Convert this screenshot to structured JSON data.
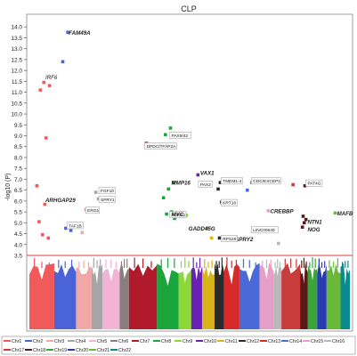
{
  "chart_data": {
    "type": "scatter",
    "title": "CLP",
    "ylabel": "-log10 (P)",
    "ylim": [
      3.5,
      14.5
    ],
    "yticks": [
      "4.0",
      "4.5",
      "5.0",
      "5.5",
      "6.0",
      "6.5",
      "7.0",
      "7.5",
      "8.0",
      "8.5",
      "9.0",
      "9.5",
      "10.0",
      "10.5",
      "11.0",
      "11.5",
      "12.0",
      "12.5",
      "13.0",
      "13.5",
      "14.0"
    ],
    "threshold": 3.5,
    "chromosomes": [
      {
        "name": "Chr1",
        "color": "#f05a5a"
      },
      {
        "name": "Chr2",
        "color": "#4a63d8"
      },
      {
        "name": "Chr3",
        "color": "#f2a7a7"
      },
      {
        "name": "Chr4",
        "color": "#a6a6a6"
      },
      {
        "name": "Chr5",
        "color": "#f3b3d4"
      },
      {
        "name": "Chr6",
        "color": "#8a7d7d"
      },
      {
        "name": "Chr7",
        "color": "#b01a2a"
      },
      {
        "name": "Chr8",
        "color": "#1aa63a"
      },
      {
        "name": "Chr9",
        "color": "#8cd838"
      },
      {
        "name": "Chr10",
        "color": "#6a1fb5"
      },
      {
        "name": "Chr11",
        "color": "#d6b41a"
      },
      {
        "name": "Chr12",
        "color": "#2a2a2a"
      },
      {
        "name": "Chr13",
        "color": "#d82a2a"
      },
      {
        "name": "Chr14",
        "color": "#4a6ad8"
      },
      {
        "name": "Chr15",
        "color": "#e6a0c8"
      },
      {
        "name": "Chr16",
        "color": "#b8b8b8"
      },
      {
        "name": "Chr17",
        "color": "#c83c3c"
      },
      {
        "name": "Chr18",
        "color": "#5a1a1a"
      },
      {
        "name": "Chr19",
        "color": "#3aa63a"
      },
      {
        "name": "Chr20",
        "color": "#2a3ab0"
      },
      {
        "name": "Chr21",
        "color": "#6ab83a"
      },
      {
        "name": "Chr22",
        "color": "#0a8a8a"
      }
    ],
    "points": [
      {
        "chr": "Chr1",
        "y": 5.85
      },
      {
        "chr": "Chr1",
        "y": 5.05
      },
      {
        "chr": "Chr1",
        "y": 4.3
      },
      {
        "chr": "Chr1",
        "y": 4.45
      },
      {
        "chr": "Chr1",
        "y": 6.7
      },
      {
        "chr": "Chr1",
        "y": 8.9
      },
      {
        "chr": "Chr1",
        "y": 11.1
      },
      {
        "chr": "Chr1",
        "y": 11.3
      },
      {
        "chr": "Chr1",
        "y": 11.45
      },
      {
        "chr": "Chr2",
        "y": 13.75
      },
      {
        "chr": "Chr2",
        "y": 12.4
      },
      {
        "chr": "Chr2",
        "y": 4.65
      },
      {
        "chr": "Chr2",
        "y": 4.75
      },
      {
        "chr": "Chr3",
        "y": 5.6
      },
      {
        "chr": "Chr3",
        "y": 4.55
      },
      {
        "chr": "Chr4",
        "y": 6.1
      },
      {
        "chr": "Chr4",
        "y": 6.4
      },
      {
        "chr": "Chr7",
        "y": 8.65
      },
      {
        "chr": "Chr8",
        "y": 9.35
      },
      {
        "chr": "Chr8",
        "y": 9.05
      },
      {
        "chr": "Chr8",
        "y": 6.85
      },
      {
        "chr": "Chr8",
        "y": 6.55
      },
      {
        "chr": "Chr8",
        "y": 6.15
      },
      {
        "chr": "Chr8",
        "y": 5.5
      },
      {
        "chr": "Chr8",
        "y": 5.4
      },
      {
        "chr": "Chr8",
        "y": 5.2
      },
      {
        "chr": "Chr9",
        "y": 5.35
      },
      {
        "chr": "Chr11",
        "y": 6.7
      },
      {
        "chr": "Chr11",
        "y": 4.75
      },
      {
        "chr": "Chr11",
        "y": 4.3
      },
      {
        "chr": "Chr10",
        "y": 7.2
      },
      {
        "chr": "Chr12",
        "y": 6.85
      },
      {
        "chr": "Chr12",
        "y": 6.55
      },
      {
        "chr": "Chr12",
        "y": 5.95
      },
      {
        "chr": "Chr12",
        "y": 4.3
      },
      {
        "chr": "Chr13",
        "y": 4.3
      },
      {
        "chr": "Chr14",
        "y": 6.85
      },
      {
        "chr": "Chr14",
        "y": 6.5
      },
      {
        "chr": "Chr14",
        "y": 4.7
      },
      {
        "chr": "Chr15",
        "y": 5.55
      },
      {
        "chr": "Chr16",
        "y": 4.05
      },
      {
        "chr": "Chr17",
        "y": 6.75
      },
      {
        "chr": "Chr18",
        "y": 6.7
      },
      {
        "chr": "Chr18",
        "y": 5.3
      },
      {
        "chr": "Chr18",
        "y": 5.15
      },
      {
        "chr": "Chr18",
        "y": 5.0
      },
      {
        "chr": "Chr18",
        "y": 4.8
      },
      {
        "chr": "Chr21",
        "y": 5.45
      }
    ],
    "annotations": [
      {
        "text": "FAM49A",
        "chr": "Chr2",
        "y": 13.75,
        "style": "bold"
      },
      {
        "text": "IRF6",
        "chr": "Chr1",
        "y": 11.7,
        "style": "plain"
      },
      {
        "text": "ARHGAP29",
        "chr": "Chr1",
        "y": 6.05,
        "style": "bold"
      },
      {
        "text": "TAF1B",
        "chr": "Chr2",
        "y": 4.9,
        "style": "boxed"
      },
      {
        "text": "SPRY1",
        "chr": "Chr4",
        "y": 6.1,
        "style": "boxed"
      },
      {
        "text": "ERG1",
        "chr": "Chr3",
        "y": 5.6,
        "style": "boxed"
      },
      {
        "text": "FGF10",
        "chr": "Chr4",
        "y": 6.5,
        "style": "boxed"
      },
      {
        "text": "DPDC/TFAP2A",
        "chr": "Chr7",
        "y": 8.55,
        "style": "boxed"
      },
      {
        "text": "PAX9/42",
        "chr": "Chr8",
        "y": 9.05,
        "style": "boxed"
      },
      {
        "text": "MAFB",
        "chr": "Chr21",
        "y": 5.45,
        "style": "bold"
      },
      {
        "text": "MMP16",
        "chr": "Chr8",
        "y": 6.85,
        "style": "bold"
      },
      {
        "text": "FOXE1",
        "chr": "Chr8",
        "y": 5.4,
        "style": "boxed"
      },
      {
        "text": "MYC",
        "chr": "Chr8",
        "y": 5.4,
        "style": "bold"
      },
      {
        "text": "GADD45G",
        "chr": "Chr9",
        "y": 4.75,
        "style": "bold"
      },
      {
        "text": "PAX2",
        "chr": "Chr10",
        "y": 6.8,
        "style": "boxed"
      },
      {
        "text": "VAX1",
        "chr": "Chr10",
        "y": 7.3,
        "style": "bold"
      },
      {
        "text": "TMEM1-4",
        "chr": "Chr12",
        "y": 6.95,
        "style": "boxed"
      },
      {
        "text": "KRT18",
        "chr": "Chr12",
        "y": 5.95,
        "style": "boxed"
      },
      {
        "text": "SPRY2",
        "chr": "Chr13",
        "y": 4.25,
        "style": "bold"
      },
      {
        "text": "RPS26",
        "chr": "Chr12",
        "y": 4.3,
        "style": "boxed"
      },
      {
        "text": "CDC/EXCEP1",
        "chr": "Chr14",
        "y": 6.95,
        "style": "boxed"
      },
      {
        "text": "CREBBP",
        "chr": "Chr15",
        "y": 5.55,
        "style": "bold"
      },
      {
        "text": "LINC00640",
        "chr": "Chr14",
        "y": 4.7,
        "style": "boxed"
      },
      {
        "text": "NTN1",
        "chr": "Chr18",
        "y": 5.05,
        "style": "bold"
      },
      {
        "text": "NOG",
        "chr": "Chr18",
        "y": 4.7,
        "style": "bold"
      },
      {
        "text": "PAT4G",
        "chr": "Chr18",
        "y": 6.85,
        "style": "boxed"
      }
    ],
    "legend": {
      "placement": "bottom"
    }
  }
}
